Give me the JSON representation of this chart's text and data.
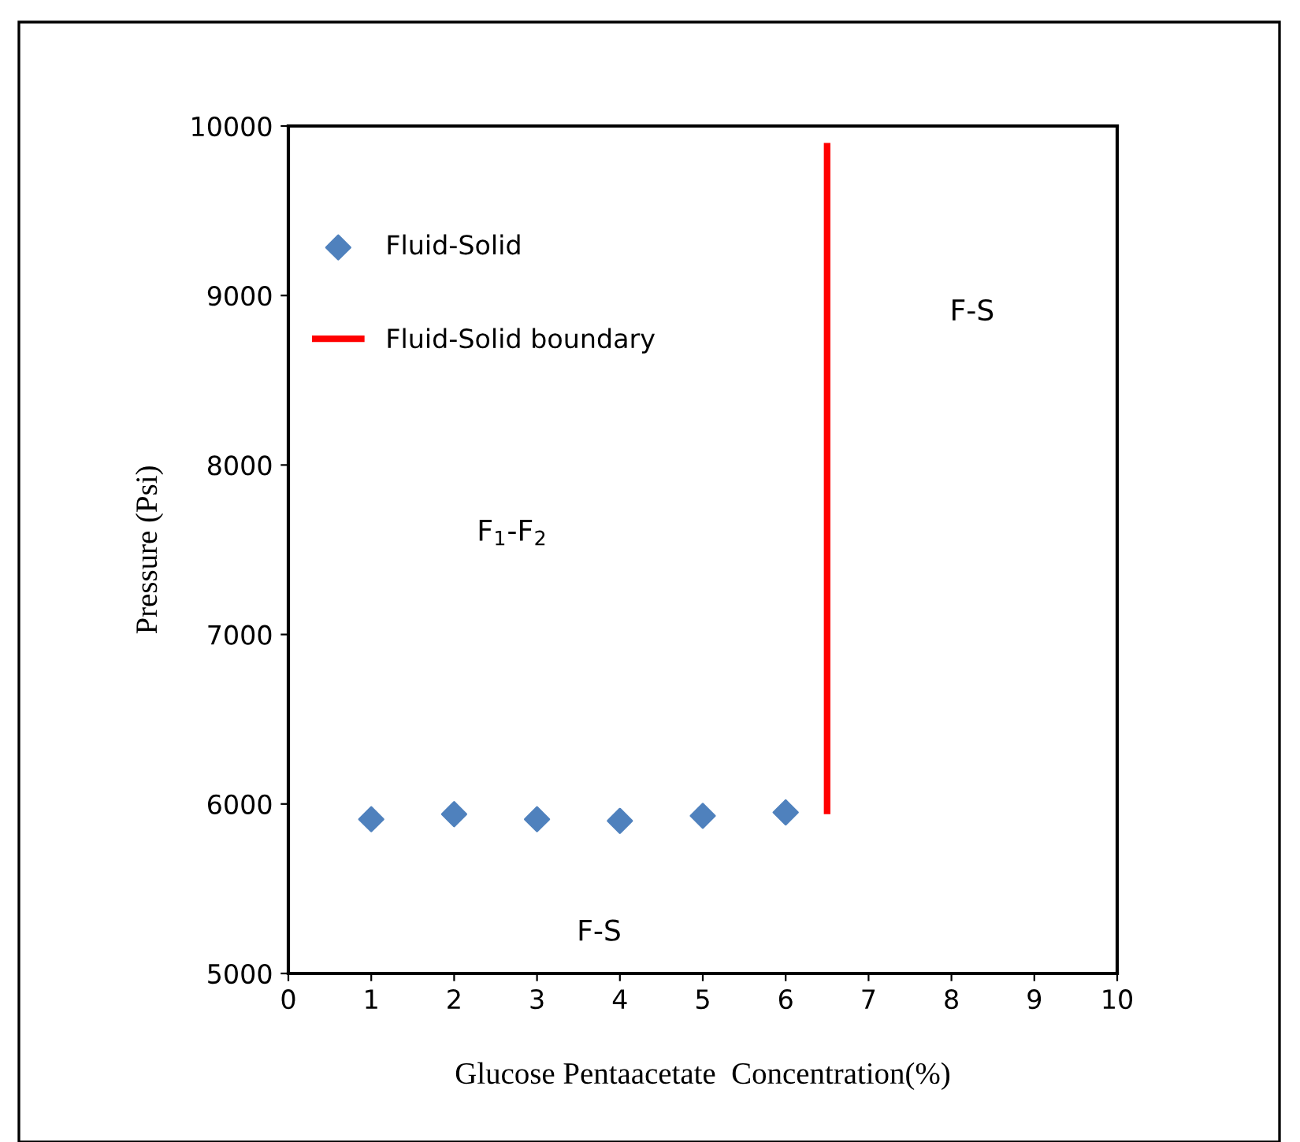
{
  "chart_data": {
    "type": "scatter",
    "xlabel": "Glucose Pentaacetate  Concentration(%)",
    "ylabel": "Pressure (Psi)",
    "series": [
      {
        "name": "Fluid-Solid",
        "color": "#4f81bd",
        "marker": "diamond",
        "x": [
          1,
          2,
          3,
          4,
          5,
          6
        ],
        "values": [
          5910,
          5940,
          5910,
          5900,
          5930,
          5950
        ]
      },
      {
        "name": "Fluid-Solid boundary",
        "type": "line",
        "color": "#ff0000",
        "marker": "none",
        "line_style": "solid",
        "x": [
          6.5,
          6.5
        ],
        "values": [
          5940,
          9900
        ]
      }
    ],
    "annotations": [
      "F$_{1}$-F$_{2}$",
      "F-S",
      "F-S"
    ],
    "xlim": [
      0,
      10
    ],
    "xticks": [
      0,
      1,
      2,
      3,
      4,
      5,
      6,
      7,
      8,
      9,
      10
    ],
    "ylim": [
      5000,
      10000
    ],
    "yticks": [
      5000,
      6000,
      7000,
      8000,
      9000,
      10000
    ],
    "grid": false,
    "legend": "top left"
  }
}
